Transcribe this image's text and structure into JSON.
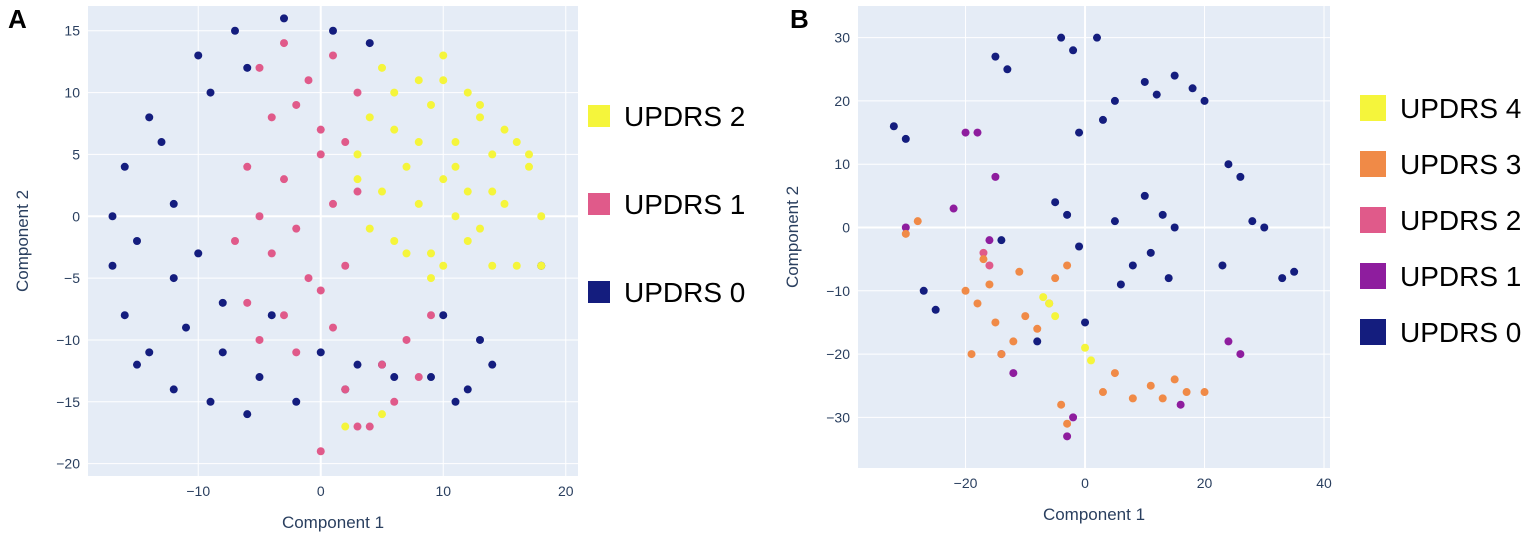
{
  "panels": [
    {
      "letter": "A"
    },
    {
      "letter": "B"
    }
  ],
  "chart_data": [
    {
      "type": "scatter",
      "title": "",
      "xlabel": "Component 1",
      "ylabel": "Component 2",
      "xlim": [
        -19,
        21
      ],
      "ylim": [
        -21,
        17
      ],
      "xticks": [
        -10,
        0,
        10,
        20
      ],
      "yticks": [
        -20,
        -15,
        -10,
        -5,
        0,
        5,
        10,
        15
      ],
      "grid": true,
      "legend_position": "right",
      "series": [
        {
          "name": "UPDRS 2",
          "color": "#f5f53b",
          "x": [
            5,
            8,
            10,
            12,
            13,
            15,
            16,
            4,
            6,
            9,
            11,
            14,
            17,
            3,
            7,
            10,
            12,
            15,
            18,
            5,
            8,
            11,
            13,
            6,
            9,
            12,
            14,
            4,
            7,
            10,
            16,
            3,
            8,
            11,
            14,
            6,
            10,
            13,
            17,
            18,
            9,
            2,
            5
          ],
          "y": [
            12,
            11,
            13,
            10,
            8,
            7,
            6,
            8,
            7,
            9,
            6,
            5,
            4,
            5,
            4,
            3,
            2,
            1,
            0,
            2,
            1,
            0,
            -1,
            -2,
            -3,
            -2,
            -4,
            -1,
            -3,
            -4,
            -4,
            3,
            6,
            4,
            2,
            10,
            11,
            9,
            5,
            -4,
            -5,
            -17,
            -16
          ]
        },
        {
          "name": "UPDRS 1",
          "color": "#e05a8a",
          "x": [
            -5,
            -3,
            -1,
            1,
            3,
            -4,
            -2,
            0,
            2,
            -6,
            -3,
            0,
            -5,
            -2,
            1,
            3,
            -4,
            -1,
            2,
            -6,
            -3,
            0,
            -5,
            -2,
            1,
            5,
            7,
            8,
            6,
            4,
            3,
            9,
            -7,
            0,
            2
          ],
          "y": [
            12,
            14,
            11,
            13,
            10,
            8,
            9,
            7,
            6,
            4,
            3,
            5,
            0,
            -1,
            1,
            2,
            -3,
            -5,
            -4,
            -7,
            -8,
            -6,
            -10,
            -11,
            -9,
            -12,
            -10,
            -13,
            -15,
            -17,
            -17,
            -8,
            -2,
            -19,
            -14
          ]
        },
        {
          "name": "UPDRS 0",
          "color": "#141d7e",
          "x": [
            -7,
            -3,
            1,
            4,
            -10,
            -14,
            -16,
            -17,
            -17,
            -16,
            -14,
            -12,
            -9,
            -6,
            -2,
            2,
            6,
            10,
            13,
            14,
            12,
            9,
            5,
            -12,
            -15,
            -11,
            -8,
            -5,
            -13,
            -9,
            -6,
            -12,
            -10,
            -8,
            -4,
            0,
            3,
            11,
            18,
            -15
          ],
          "y": [
            15,
            16,
            15,
            14,
            13,
            8,
            4,
            0,
            -4,
            -8,
            -11,
            -14,
            -15,
            -16,
            -15,
            -14,
            -13,
            -8,
            -10,
            -12,
            -14,
            -13,
            -12,
            -5,
            -2,
            -9,
            -11,
            -13,
            6,
            10,
            12,
            1,
            -3,
            -7,
            -8,
            -11,
            -12,
            -15,
            -4,
            -12
          ]
        }
      ]
    },
    {
      "type": "scatter",
      "title": "",
      "xlabel": "Component 1",
      "ylabel": "Component 2",
      "xlim": [
        -38,
        41
      ],
      "ylim": [
        -38,
        35
      ],
      "xticks": [
        -20,
        0,
        20,
        40
      ],
      "yticks": [
        -30,
        -20,
        -10,
        0,
        10,
        20,
        30
      ],
      "grid": true,
      "legend_position": "right",
      "series": [
        {
          "name": "UPDRS 4",
          "color": "#f5f53b",
          "x": [
            -7,
            -6,
            -5,
            0,
            1
          ],
          "y": [
            -11,
            -12,
            -14,
            -19,
            -21
          ]
        },
        {
          "name": "UPDRS 3",
          "color": "#f08a47",
          "x": [
            -30,
            -28,
            -20,
            -18,
            -16,
            -15,
            -12,
            -10,
            -8,
            -6,
            -5,
            -3,
            -14,
            -19,
            -17,
            -4,
            3,
            5,
            8,
            11,
            13,
            15,
            17,
            20,
            -11,
            -3
          ],
          "y": [
            -1,
            1,
            -10,
            -12,
            -9,
            -15,
            -18,
            -14,
            -16,
            -12,
            -8,
            -6,
            -20,
            -20,
            -5,
            -28,
            -26,
            -23,
            -27,
            -25,
            -27,
            -24,
            -26,
            -26,
            -7,
            -31
          ]
        },
        {
          "name": "UPDRS 2",
          "color": "#e05a8a",
          "x": [
            -17,
            -16
          ],
          "y": [
            -4,
            -6
          ]
        },
        {
          "name": "UPDRS 1",
          "color": "#8e1d9e",
          "x": [
            -20,
            -18,
            -15,
            -22,
            -16,
            -14,
            -12,
            -3,
            -2,
            16,
            24,
            26,
            -30
          ],
          "y": [
            15,
            15,
            8,
            3,
            -2,
            -20,
            -23,
            -33,
            -30,
            -28,
            -18,
            -20,
            0
          ]
        },
        {
          "name": "UPDRS 0",
          "color": "#141d7e",
          "x": [
            -32,
            -30,
            -15,
            -13,
            -4,
            -2,
            2,
            5,
            10,
            12,
            15,
            18,
            20,
            -1,
            3,
            -5,
            -3,
            5,
            10,
            13,
            15,
            24,
            26,
            28,
            30,
            33,
            35,
            23,
            -27,
            -25,
            -14,
            -8,
            8,
            11,
            14,
            -1,
            6,
            0
          ],
          "y": [
            16,
            14,
            27,
            25,
            30,
            28,
            30,
            20,
            23,
            21,
            24,
            22,
            20,
            15,
            17,
            4,
            2,
            1,
            5,
            2,
            0,
            10,
            8,
            1,
            0,
            -8,
            -7,
            -6,
            -10,
            -13,
            -2,
            -18,
            -6,
            -4,
            -8,
            -3,
            -9,
            -15
          ]
        }
      ]
    }
  ]
}
